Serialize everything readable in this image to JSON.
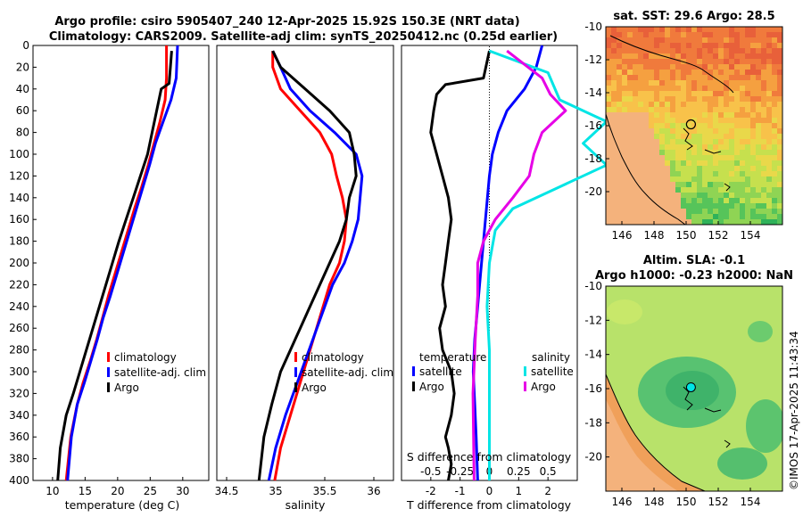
{
  "title": {
    "line1": "Argo profile: csiro 5905407_240 12-Apr-2025 15.92S 150.3E (NRT data)",
    "line2": "Climatology: CARS2009. Satellite-adj clim: synTS_20250412.nc (0.25d earlier)"
  },
  "colors": {
    "climatology": "#ff0000",
    "satellite": "#0000ff",
    "argo": "#000000",
    "sat_salinity": "#00e5e5",
    "argo_salinity": "#e600e6"
  },
  "chart_data": [
    {
      "type": "line",
      "name": "temperature",
      "xlabel": "temperature (deg C)",
      "xlim": [
        7,
        34
      ],
      "ylim": [
        0,
        400
      ],
      "xticks": [
        10,
        15,
        20,
        25,
        30
      ],
      "yticks": [
        0,
        20,
        40,
        60,
        80,
        100,
        120,
        140,
        160,
        180,
        200,
        220,
        240,
        260,
        280,
        300,
        320,
        340,
        360,
        380,
        400
      ],
      "legend": [
        "climatology",
        "satellite-adj. clim",
        "Argo"
      ],
      "series": [
        {
          "name": "climatology",
          "color": "#ff0000",
          "x": [
            27.5,
            27.5,
            27.3,
            26.5,
            25.6,
            24.7,
            23.7,
            22.6,
            21.6,
            20.6,
            19.6,
            18.6,
            17.7,
            16.8,
            15.8,
            14.7,
            13.8,
            12.8,
            12.1
          ],
          "y": [
            0,
            30,
            50,
            70,
            90,
            110,
            130,
            150,
            170,
            190,
            210,
            230,
            250,
            270,
            290,
            310,
            330,
            360,
            400
          ]
        },
        {
          "name": "satellite-adj. clim",
          "color": "#0000ff",
          "x": [
            29.2,
            29.0,
            28.2,
            27.0,
            25.8,
            24.9,
            23.9,
            22.9,
            21.9,
            20.9,
            19.9,
            18.9,
            17.8,
            16.9,
            15.9,
            14.9,
            13.8,
            12.9,
            12.3
          ],
          "y": [
            0,
            30,
            50,
            70,
            90,
            110,
            130,
            150,
            170,
            190,
            210,
            230,
            250,
            270,
            290,
            310,
            330,
            360,
            400
          ]
        },
        {
          "name": "Argo",
          "color": "#000000",
          "x": [
            28.3,
            28.1,
            27.9,
            26.7,
            26.0,
            25.3,
            24.6,
            23.5,
            22.4,
            21.3,
            20.2,
            19.2,
            18.2,
            17.2,
            16.2,
            15.2,
            14.2,
            13.2,
            12.1,
            11.2,
            10.8
          ],
          "y": [
            5,
            20,
            35,
            40,
            60,
            80,
            100,
            120,
            140,
            160,
            180,
            200,
            220,
            240,
            260,
            280,
            300,
            320,
            340,
            370,
            400
          ]
        }
      ]
    },
    {
      "type": "line",
      "name": "salinity",
      "xlabel": "salinity",
      "xlim": [
        34.4,
        36.2
      ],
      "ylim": [
        0,
        400
      ],
      "xticks": [
        34.5,
        35,
        35.5,
        36
      ],
      "legend": [
        "climatology",
        "satellite-adj. clim",
        "Argo"
      ],
      "series": [
        {
          "name": "climatology",
          "color": "#ff0000",
          "x": [
            34.97,
            34.97,
            35.05,
            35.25,
            35.45,
            35.57,
            35.62,
            35.68,
            35.72,
            35.7,
            35.65,
            35.55,
            35.45,
            35.35,
            35.25,
            35.15,
            35.05,
            34.99
          ],
          "y": [
            5,
            20,
            40,
            60,
            80,
            100,
            120,
            140,
            160,
            180,
            200,
            220,
            250,
            280,
            310,
            340,
            370,
            400
          ]
        },
        {
          "name": "satellite-adj. clim",
          "color": "#0000ff",
          "x": [
            34.97,
            35.05,
            35.15,
            35.35,
            35.6,
            35.82,
            35.88,
            35.86,
            35.84,
            35.78,
            35.7,
            35.58,
            35.46,
            35.34,
            35.22,
            35.1,
            35.0,
            34.93
          ],
          "y": [
            5,
            20,
            40,
            60,
            80,
            100,
            120,
            140,
            160,
            180,
            200,
            220,
            250,
            280,
            310,
            340,
            370,
            400
          ]
        },
        {
          "name": "Argo",
          "color": "#000000",
          "x": [
            34.97,
            35.05,
            35.3,
            35.55,
            35.75,
            35.8,
            35.82,
            35.75,
            35.72,
            35.65,
            35.55,
            35.45,
            35.35,
            35.25,
            35.15,
            35.05,
            34.96,
            34.88,
            34.83
          ],
          "y": [
            5,
            20,
            40,
            60,
            80,
            100,
            120,
            140,
            160,
            180,
            200,
            220,
            240,
            260,
            280,
            300,
            330,
            360,
            400
          ]
        }
      ]
    },
    {
      "type": "line",
      "name": "difference",
      "xlabel": "T difference from climatology",
      "top_label": "S difference from climatology",
      "xlim": [
        -3,
        3
      ],
      "ylim": [
        0,
        400
      ],
      "xticks": [
        "-2",
        "-1",
        "0",
        "1",
        "2"
      ],
      "s_ticks": [
        "-0.5",
        "-0.25",
        "0",
        "0.25",
        "0.5"
      ],
      "legend": {
        "temperature": "temperature",
        "salinity": "salinity",
        "items": [
          "satellite",
          "Argo"
        ]
      },
      "series": [
        {
          "name": "temperature satellite",
          "color": "#0000ff",
          "x": [
            1.8,
            1.6,
            1.2,
            0.6,
            0.3,
            0.1,
            0.0,
            -0.1,
            -0.2,
            -0.3,
            -0.4,
            -0.5,
            -0.55,
            -0.5,
            -0.45,
            -0.4
          ],
          "y": [
            0,
            20,
            40,
            60,
            80,
            100,
            120,
            150,
            180,
            210,
            240,
            270,
            300,
            330,
            360,
            400
          ]
        },
        {
          "name": "temperature Argo",
          "color": "#000000",
          "x": [
            0.0,
            -0.2,
            -1.5,
            -1.8,
            -1.9,
            -2.0,
            -1.8,
            -1.6,
            -1.4,
            -1.3,
            -1.4,
            -1.5,
            -1.6,
            -1.5,
            -1.7,
            -1.6,
            -1.3,
            -1.2,
            -1.3,
            -1.5,
            -1.4,
            -1.3,
            -1.4
          ],
          "y": [
            5,
            30,
            36,
            45,
            60,
            80,
            100,
            120,
            140,
            160,
            180,
            200,
            220,
            240,
            260,
            280,
            300,
            320,
            340,
            360,
            370,
            385,
            400
          ]
        },
        {
          "name": "salinity satellite",
          "color": "#00e5e5",
          "x": [
            0.0,
            0.5,
            0.6,
            1.0,
            0.8,
            1.0,
            0.6,
            0.2,
            0.05,
            0.0,
            -0.02,
            0.0,
            0.0,
            0.0
          ],
          "y": [
            5,
            25,
            50,
            70,
            90,
            110,
            130,
            150,
            170,
            200,
            240,
            280,
            330,
            400
          ]
        },
        {
          "name": "salinity Argo",
          "color": "#e600e6",
          "x": [
            0.15,
            0.45,
            0.52,
            0.65,
            0.45,
            0.38,
            0.34,
            0.2,
            0.05,
            -0.05,
            -0.1,
            -0.1,
            -0.12,
            -0.14,
            -0.13
          ],
          "y": [
            5,
            30,
            45,
            60,
            80,
            100,
            120,
            140,
            160,
            180,
            200,
            230,
            270,
            320,
            400
          ]
        }
      ]
    },
    {
      "type": "heatmap",
      "name": "sst-map",
      "title": "sat. SST: 29.6 Argo: 28.5",
      "xlim": [
        145,
        156
      ],
      "ylim": [
        -22,
        -10
      ],
      "xticks": [
        "146",
        "148",
        "150",
        "152",
        "154"
      ],
      "yticks": [
        "-10",
        "-12",
        "-14",
        "-16",
        "-18",
        "-20"
      ],
      "argo_position": {
        "lon": 150.3,
        "lat": -15.92
      }
    },
    {
      "type": "heatmap",
      "name": "sla-map",
      "title1": "Altim. SLA: -0.1",
      "title2": "Argo h1000: -0.23 h2000: NaN",
      "xlim": [
        145,
        156
      ],
      "ylim": [
        -22,
        -10
      ],
      "xticks": [
        "146",
        "148",
        "150",
        "152",
        "154"
      ],
      "yticks": [
        "-10",
        "-12",
        "-14",
        "-16",
        "-18",
        "-20"
      ],
      "argo_position": {
        "lon": 150.3,
        "lat": -15.92
      }
    }
  ],
  "watermark": "©IMOS 17-Apr-2025 11:43:34"
}
